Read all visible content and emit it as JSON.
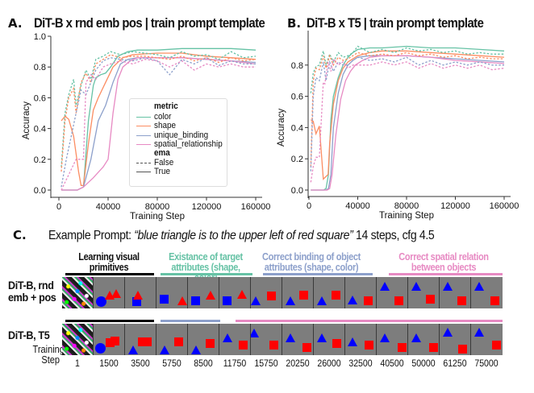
{
  "panels": {
    "a": {
      "letter": "A.",
      "title": "DiT-B x rnd emb pos | train prompt template"
    },
    "b": {
      "letter": "B.",
      "title": "DiT-B x T5 | train prompt template"
    },
    "c": {
      "letter": "C."
    }
  },
  "legend": {
    "metric_header": "metric",
    "metrics": [
      "color",
      "shape",
      "unique_binding",
      "spatial_relationship"
    ],
    "ema_header": "ema",
    "ema_values": [
      "False",
      "True"
    ]
  },
  "colors": {
    "color": "#66c2a5",
    "shape": "#fc8d62",
    "unique_binding": "#8da0cb",
    "spatial_relationship": "#e78ac3"
  },
  "chart_data": [
    {
      "type": "line",
      "title": "DiT-B x rnd emb pos | train prompt template",
      "xlabel": "Training Step",
      "ylabel": "Accuracy",
      "xlim": [
        0,
        160000
      ],
      "ylim": [
        0,
        1.0
      ],
      "xticks": [
        "0",
        "40000",
        "80000",
        "120000",
        "160000"
      ],
      "yticks": [
        "0.0",
        "0.2",
        "0.4",
        "0.6",
        "0.8",
        "1.0"
      ],
      "legend_position": "center-right",
      "series": [
        {
          "name": "color",
          "ema": "True",
          "x": [
            2000,
            15000,
            20000,
            24000,
            28000,
            30000,
            34000,
            38000,
            42000,
            48000,
            56000,
            64000,
            80000,
            100000,
            120000,
            140000,
            160000
          ],
          "y": [
            0,
            0,
            0.02,
            0.45,
            0.68,
            0.73,
            0.75,
            0.76,
            0.8,
            0.87,
            0.9,
            0.91,
            0.91,
            0.92,
            0.92,
            0.92,
            0.91
          ]
        },
        {
          "name": "shape",
          "ema": "True",
          "x": [
            2000,
            5000,
            8000,
            12000,
            16000,
            18000,
            20000,
            24000,
            28000,
            32000,
            38000,
            44000,
            52000,
            60000,
            80000,
            100000,
            120000,
            140000,
            160000
          ],
          "y": [
            0.45,
            0.48,
            0.46,
            0.35,
            0.12,
            0.03,
            0.03,
            0.3,
            0.52,
            0.6,
            0.7,
            0.8,
            0.86,
            0.88,
            0.89,
            0.89,
            0.87,
            0.86,
            0.85
          ]
        },
        {
          "name": "unique_binding",
          "ema": "True",
          "x": [
            2000,
            15000,
            20000,
            26000,
            32000,
            38000,
            44000,
            50000,
            56000,
            64000,
            80000,
            100000,
            120000,
            140000,
            160000
          ],
          "y": [
            0,
            0,
            0.02,
            0.2,
            0.45,
            0.55,
            0.7,
            0.82,
            0.85,
            0.86,
            0.86,
            0.86,
            0.85,
            0.84,
            0.83
          ]
        },
        {
          "name": "spatial_relationship",
          "ema": "True",
          "x": [
            2000,
            15000,
            20000,
            28000,
            36000,
            40000,
            44000,
            48000,
            52000,
            58000,
            64000,
            80000,
            100000,
            120000,
            140000,
            160000
          ],
          "y": [
            0,
            0,
            0.02,
            0.08,
            0.15,
            0.2,
            0.5,
            0.72,
            0.8,
            0.84,
            0.86,
            0.86,
            0.86,
            0.85,
            0.84,
            0.82
          ]
        },
        {
          "name": "color",
          "ema": "False",
          "x": [
            2000,
            5000,
            8000,
            12000,
            14000,
            18000,
            22000,
            26000,
            30000,
            36000,
            42000,
            50000,
            60000,
            70000,
            80000,
            90000,
            100000,
            110000,
            120000,
            130000,
            140000,
            150000,
            160000
          ],
          "y": [
            0.15,
            0.5,
            0.62,
            0.72,
            0.55,
            0.68,
            0.78,
            0.72,
            0.85,
            0.87,
            0.9,
            0.88,
            0.9,
            0.89,
            0.88,
            0.86,
            0.9,
            0.87,
            0.88,
            0.85,
            0.9,
            0.86,
            0.87
          ]
        },
        {
          "name": "shape",
          "ema": "False",
          "x": [
            2000,
            5000,
            8000,
            12000,
            14000,
            18000,
            22000,
            26000,
            30000,
            36000,
            42000,
            50000,
            60000,
            70000,
            80000,
            90000,
            100000,
            110000,
            120000,
            130000,
            140000,
            150000,
            160000
          ],
          "y": [
            0.12,
            0.45,
            0.6,
            0.66,
            0.5,
            0.7,
            0.76,
            0.7,
            0.82,
            0.85,
            0.88,
            0.86,
            0.87,
            0.87,
            0.86,
            0.85,
            0.87,
            0.84,
            0.86,
            0.83,
            0.86,
            0.84,
            0.85
          ]
        },
        {
          "name": "unique_binding",
          "ema": "False",
          "x": [
            2000,
            6000,
            10000,
            14000,
            18000,
            22000,
            26000,
            30000,
            36000,
            42000,
            50000,
            60000,
            70000,
            80000,
            90000,
            100000,
            110000,
            120000,
            130000,
            140000,
            150000,
            160000
          ],
          "y": [
            0.02,
            0.2,
            0.35,
            0.5,
            0.65,
            0.62,
            0.7,
            0.78,
            0.84,
            0.86,
            0.85,
            0.84,
            0.86,
            0.84,
            0.75,
            0.85,
            0.82,
            0.86,
            0.81,
            0.84,
            0.82,
            0.82
          ]
        },
        {
          "name": "spatial_relationship",
          "ema": "False",
          "x": [
            2000,
            8000,
            14000,
            20000,
            22000,
            26000,
            30000,
            36000,
            42000,
            50000,
            60000,
            70000,
            80000,
            90000,
            100000,
            110000,
            120000,
            130000,
            140000,
            150000,
            160000
          ],
          "y": [
            0.0,
            0.1,
            0.2,
            0.2,
            0.7,
            0.75,
            0.72,
            0.8,
            0.82,
            0.84,
            0.82,
            0.85,
            0.84,
            0.8,
            0.84,
            0.78,
            0.82,
            0.8,
            0.82,
            0.8,
            0.8
          ]
        }
      ]
    },
    {
      "type": "line",
      "title": "DiT-B x T5 | train prompt template",
      "xlabel": "Training Step",
      "ylabel": "Accuracy",
      "xlim": [
        0,
        160000
      ],
      "ylim": [
        0,
        1.0
      ],
      "xticks": [
        "0",
        "40000",
        "80000",
        "120000",
        "160000"
      ],
      "yticks": [
        "0.0",
        "0.2",
        "0.4",
        "0.6",
        "0.8"
      ],
      "series": [
        {
          "name": "color",
          "ema": "True",
          "x": [
            1500,
            12000,
            14000,
            16000,
            18000,
            20000,
            24000,
            28000,
            32000,
            36000,
            40000,
            50000,
            60000,
            80000,
            100000,
            120000,
            140000,
            160000
          ],
          "y": [
            0,
            0,
            0.01,
            0.1,
            0.45,
            0.6,
            0.72,
            0.8,
            0.85,
            0.88,
            0.9,
            0.91,
            0.91,
            0.92,
            0.91,
            0.91,
            0.9,
            0.89
          ]
        },
        {
          "name": "shape",
          "ema": "True",
          "x": [
            1500,
            3500,
            5750,
            8500,
            11750,
            15750,
            17000,
            20000,
            24000,
            28000,
            32000,
            40000,
            50000,
            60000,
            80000,
            100000,
            120000,
            140000,
            160000
          ],
          "y": [
            0.45,
            0.44,
            0.36,
            0.41,
            0.07,
            0.1,
            0.3,
            0.55,
            0.7,
            0.78,
            0.82,
            0.86,
            0.88,
            0.89,
            0.89,
            0.88,
            0.87,
            0.86,
            0.85
          ]
        },
        {
          "name": "unique_binding",
          "ema": "True",
          "x": [
            1500,
            14000,
            16000,
            18000,
            20000,
            24000,
            28000,
            32000,
            36000,
            40000,
            50000,
            60000,
            80000,
            100000,
            120000,
            140000,
            160000
          ],
          "y": [
            0,
            0,
            0.01,
            0.1,
            0.4,
            0.62,
            0.74,
            0.8,
            0.83,
            0.85,
            0.86,
            0.86,
            0.86,
            0.85,
            0.84,
            0.83,
            0.82
          ]
        },
        {
          "name": "spatial_relationship",
          "ema": "True",
          "x": [
            1500,
            15000,
            17000,
            19000,
            22000,
            26000,
            30000,
            34000,
            38000,
            44000,
            50000,
            60000,
            80000,
            100000,
            120000,
            140000,
            160000
          ],
          "y": [
            0,
            0,
            0.01,
            0.1,
            0.35,
            0.58,
            0.7,
            0.76,
            0.8,
            0.83,
            0.85,
            0.86,
            0.86,
            0.85,
            0.83,
            0.82,
            0.81
          ]
        },
        {
          "name": "color",
          "ema": "False",
          "x": [
            1500,
            3500,
            5750,
            8500,
            11750,
            14000,
            17000,
            20000,
            24000,
            28000,
            32000,
            36000,
            40000,
            50000,
            60000,
            70000,
            80000,
            90000,
            100000,
            110000,
            120000,
            130000,
            140000,
            150000,
            160000
          ],
          "y": [
            0.62,
            0.75,
            0.79,
            0.8,
            0.89,
            0.8,
            0.87,
            0.82,
            0.88,
            0.85,
            0.86,
            0.88,
            0.92,
            0.88,
            0.9,
            0.88,
            0.91,
            0.89,
            0.9,
            0.88,
            0.89,
            0.87,
            0.88,
            0.87,
            0.87
          ]
        },
        {
          "name": "shape",
          "ema": "False",
          "x": [
            1500,
            3500,
            5750,
            8500,
            11750,
            14000,
            17000,
            20000,
            24000,
            28000,
            32000,
            36000,
            40000,
            50000,
            60000,
            70000,
            80000,
            90000,
            100000,
            110000,
            120000,
            130000,
            140000,
            150000,
            160000
          ],
          "y": [
            0.15,
            0.7,
            0.78,
            0.77,
            0.86,
            0.78,
            0.86,
            0.8,
            0.85,
            0.83,
            0.84,
            0.86,
            0.88,
            0.86,
            0.87,
            0.86,
            0.88,
            0.86,
            0.87,
            0.85,
            0.86,
            0.84,
            0.85,
            0.84,
            0.84
          ]
        },
        {
          "name": "unique_binding",
          "ema": "False",
          "x": [
            1500,
            3500,
            5750,
            8500,
            11750,
            14000,
            17000,
            20000,
            24000,
            28000,
            32000,
            36000,
            40000,
            50000,
            60000,
            70000,
            80000,
            90000,
            100000,
            110000,
            120000,
            130000,
            140000,
            150000,
            160000
          ],
          "y": [
            0.12,
            0.6,
            0.72,
            0.7,
            0.82,
            0.7,
            0.82,
            0.76,
            0.82,
            0.8,
            0.8,
            0.83,
            0.85,
            0.83,
            0.84,
            0.82,
            0.85,
            0.8,
            0.83,
            0.8,
            0.82,
            0.8,
            0.82,
            0.8,
            0.8
          ]
        },
        {
          "name": "spatial_relationship",
          "ema": "False",
          "x": [
            1500,
            3500,
            5750,
            8500,
            11750,
            13000,
            15750,
            18000,
            20250,
            24000,
            28000,
            32000,
            36000,
            40000,
            50000,
            60000,
            70000,
            80000,
            90000,
            100000,
            110000,
            120000,
            130000,
            140000,
            150000,
            160000
          ],
          "y": [
            0.05,
            0.15,
            0.21,
            0.21,
            0.69,
            0.68,
            0.82,
            0.76,
            0.84,
            0.8,
            0.82,
            0.78,
            0.8,
            0.8,
            0.8,
            0.82,
            0.8,
            0.82,
            0.78,
            0.81,
            0.78,
            0.8,
            0.78,
            0.8,
            0.77,
            0.78
          ]
        }
      ]
    }
  ],
  "section_c": {
    "prompt_prefix": "Example Prompt:",
    "prompt_text": "“blue triangle is to the upper left of red square”",
    "prompt_suffix": "14 steps, cfg 4.5",
    "stages": [
      {
        "line1": "Learning visual",
        "line2": "primitives",
        "color": "#000000"
      },
      {
        "line1": "Existance of target",
        "line2": "attributes (shape, color)",
        "color": "#66c2a5"
      },
      {
        "line1": "Correct binding of object",
        "line2": "attributes (shape, color)",
        "color": "#8da0cb"
      },
      {
        "line1": "Correct spatial relation",
        "line2": "between objects",
        "color": "#e78ac3"
      }
    ],
    "rows": [
      {
        "label_line1": "DiT-B, rnd",
        "label_line2": "emb + pos"
      },
      {
        "label_line1": "DiT-B, T5",
        "label_line2": ""
      }
    ],
    "step_label_line1": "Training",
    "step_label_line2": "Step",
    "steps": [
      "1",
      "1500",
      "3500",
      "5750",
      "8500",
      "11750",
      "15750",
      "20250",
      "26000",
      "32500",
      "40500",
      "50000",
      "61250",
      "75000"
    ]
  }
}
